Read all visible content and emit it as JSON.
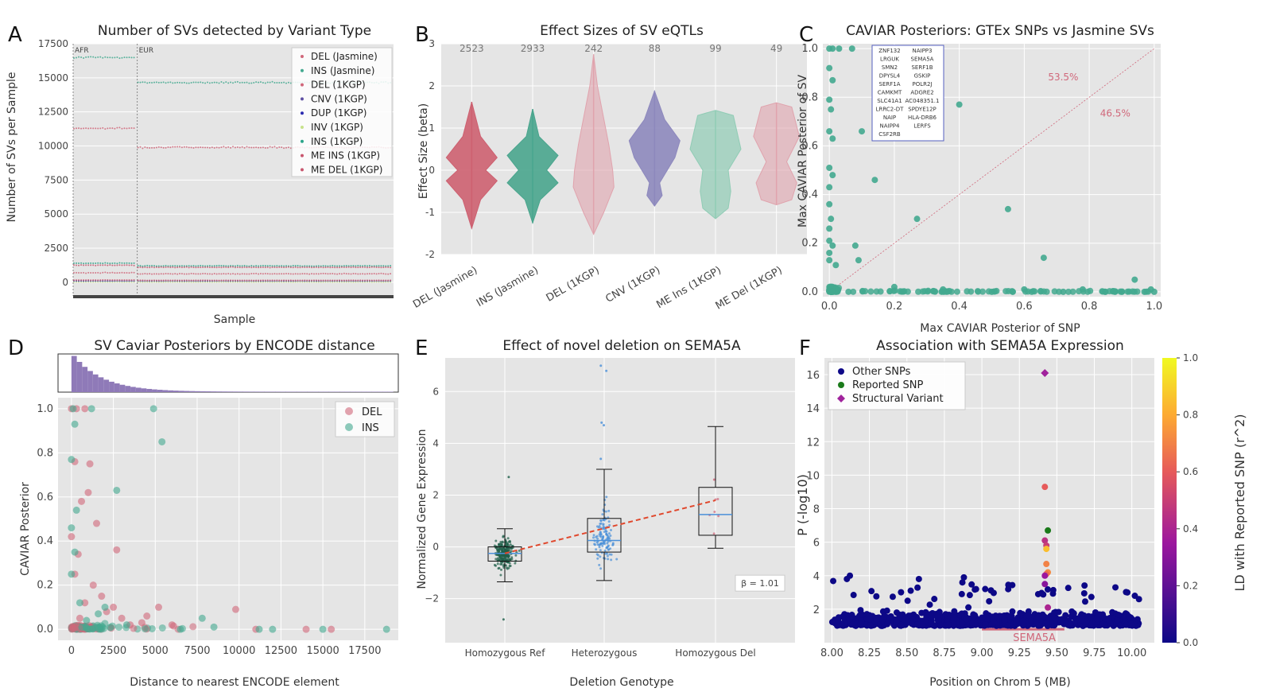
{
  "colors": {
    "panel_bg": "#e5e5e5",
    "grid": "#ffffff",
    "del": "#d0677a",
    "ins": "#43a98f",
    "cnv": "#5e4fa2",
    "dup": "#2b2bb0",
    "inv": "#c7e28b",
    "me_ins": "#2ca58a",
    "me_del": "#c8566e",
    "violin_del": "#cd6070",
    "violin_ins": "#49a58d",
    "violin_cnv": "#8d88bd",
    "violin_meins": "#90ccb5",
    "violin_medel": "#e0a3ad",
    "box_blue": "#4a90d9",
    "trend": "#e0482d",
    "hist": "#8f7ab8",
    "other_snp": "#0d0887",
    "reported_snp": "#1a7a1a",
    "sv": "#a0229c",
    "gene": "#d0677a"
  },
  "chart_data": [
    {
      "panel": "A",
      "type": "scatter",
      "title": "Number of SVs detected by Variant Type",
      "xlabel": "Sample",
      "ylabel": "Number of SVs per Sample",
      "ylim": [
        -1000,
        17500
      ],
      "yticks": [
        0,
        2500,
        5000,
        7500,
        10000,
        12500,
        15000,
        17500
      ],
      "population_labels": [
        "AFR",
        "EUR"
      ],
      "afr_fraction": 0.2,
      "legend_position": "top-right",
      "series": [
        {
          "name": "DEL (Jasmine)",
          "afr": 11300,
          "eur": 9900
        },
        {
          "name": "INS (Jasmine)",
          "afr": 16500,
          "eur": 14650
        },
        {
          "name": "DEL (1KGP)",
          "afr": 700,
          "eur": 620
        },
        {
          "name": "CNV (1KGP)",
          "afr": 60,
          "eur": 55
        },
        {
          "name": "DUP (1KGP)",
          "afr": 90,
          "eur": 80
        },
        {
          "name": "INV (1KGP)",
          "afr": 20,
          "eur": 18
        },
        {
          "name": "INS (1KGP)",
          "afr": 1400,
          "eur": 1200
        },
        {
          "name": "ME INS (1KGP)",
          "afr": 1250,
          "eur": 1100
        },
        {
          "name": "ME DEL (1KGP)",
          "afr": 160,
          "eur": 140
        }
      ]
    },
    {
      "panel": "B",
      "type": "violin",
      "title": "Effect Sizes of SV eQTLs",
      "ylabel": "Effect Size (beta)",
      "ylim": [
        -2,
        3
      ],
      "yticks": [
        -2,
        -1,
        0,
        1,
        2,
        3
      ],
      "categories": [
        "DEL (Jasmine)",
        "INS (Jasmine)",
        "DEL (1KGP)",
        "CNV (1KGP)",
        "ME Ins (1KGP)",
        "ME Del (1KGP)"
      ],
      "counts": [
        "2523",
        "2933",
        "242",
        "88",
        "99",
        "49"
      ],
      "ranges": [
        [
          -1.38,
          1.62
        ],
        [
          -1.25,
          1.45
        ],
        [
          -1.52,
          2.75
        ],
        [
          -0.85,
          1.88
        ],
        [
          -1.15,
          1.42
        ],
        [
          -0.82,
          1.6
        ]
      ]
    },
    {
      "panel": "C",
      "type": "scatter",
      "title": "CAVIAR Posteriors: GTEx SNPs vs Jasmine SVs",
      "xlabel": "Max CAVIAR Posterior of SNP",
      "ylabel": "Max CAVIAR Posterior of SV",
      "xlim": [
        -0.02,
        1.02
      ],
      "ylim": [
        -0.02,
        1.02
      ],
      "xticks": [
        0.0,
        0.2,
        0.4,
        0.6,
        0.8,
        1.0
      ],
      "yticks": [
        0.0,
        0.2,
        0.4,
        0.6,
        0.8,
        1.0
      ],
      "above_pct": "53.5%",
      "below_pct": "46.5%",
      "genes": [
        "ZNF132",
        "NAIPP3",
        "LRGUK",
        "SEMA5A",
        "SMN2",
        "SERF1B",
        "DPYSL4",
        "GSKIP",
        "SERF1A",
        "POLR2J",
        "CAMKMT",
        "ADGRE2",
        "SLC41A1",
        "AC048351.1",
        "LRRC2-DT",
        "SPDYE12P",
        "NAIP",
        "HLA-DRB6",
        "NAIPP4",
        "LERFS",
        "CSF2RB",
        ""
      ],
      "points": [
        [
          0.0,
          1.0
        ],
        [
          0.01,
          1.0
        ],
        [
          0.03,
          1.0
        ],
        [
          0.07,
          1.0
        ],
        [
          0.0,
          0.92
        ],
        [
          0.01,
          0.87
        ],
        [
          0.0,
          0.79
        ],
        [
          0.005,
          0.75
        ],
        [
          0.0,
          0.66
        ],
        [
          0.01,
          0.63
        ],
        [
          0.0,
          0.51
        ],
        [
          0.01,
          0.48
        ],
        [
          0.0,
          0.43
        ],
        [
          0.0,
          0.36
        ],
        [
          0.005,
          0.3
        ],
        [
          0.0,
          0.26
        ],
        [
          0.0,
          0.21
        ],
        [
          0.01,
          0.19
        ],
        [
          0.0,
          0.16
        ],
        [
          0.0,
          0.13
        ],
        [
          0.02,
          0.11
        ],
        [
          0.1,
          0.66
        ],
        [
          0.14,
          0.46
        ],
        [
          0.4,
          0.77
        ],
        [
          0.27,
          0.3
        ],
        [
          0.55,
          0.34
        ],
        [
          0.66,
          0.14
        ],
        [
          0.08,
          0.19
        ],
        [
          0.09,
          0.13
        ],
        [
          0.94,
          0.05
        ],
        [
          0.2,
          0.02
        ],
        [
          0.35,
          0.01
        ],
        [
          0.5,
          0.0
        ],
        [
          0.6,
          0.01
        ],
        [
          0.72,
          0.0
        ],
        [
          0.78,
          0.01
        ],
        [
          0.85,
          0.0
        ],
        [
          0.9,
          0.0
        ],
        [
          0.97,
          0.0
        ],
        [
          1.0,
          0.0
        ],
        [
          0.99,
          0.01
        ]
      ]
    },
    {
      "panel": "D",
      "type": "scatter",
      "title": "SV Caviar Posteriors by ENCODE distance",
      "xlabel": "Distance to nearest ENCODE element",
      "ylabel": "CAVIAR Posterior",
      "xlim": [
        -800,
        19500
      ],
      "ylim": [
        -0.05,
        1.05
      ],
      "xticks": [
        0,
        2500,
        5000,
        7500,
        10000,
        12500,
        15000,
        17500
      ],
      "yticks": [
        0.0,
        0.2,
        0.4,
        0.6,
        0.8,
        1.0
      ],
      "legend_position": "top-right",
      "series": [
        {
          "name": "DEL",
          "points": [
            [
              0,
              1.0
            ],
            [
              300,
              1.0
            ],
            [
              800,
              1.0
            ],
            [
              200,
              0.76
            ],
            [
              1000,
              0.62
            ],
            [
              600,
              0.58
            ],
            [
              1100,
              0.75
            ],
            [
              0,
              0.42
            ],
            [
              400,
              0.34
            ],
            [
              2700,
              0.36
            ],
            [
              1500,
              0.48
            ],
            [
              200,
              0.25
            ],
            [
              1300,
              0.2
            ],
            [
              800,
              0.12
            ],
            [
              2500,
              0.1
            ],
            [
              3000,
              0.05
            ],
            [
              4500,
              0.06
            ],
            [
              6000,
              0.02
            ],
            [
              9800,
              0.09
            ],
            [
              11000,
              0.0
            ],
            [
              14000,
              0.0
            ],
            [
              15500,
              0.0
            ],
            [
              3500,
              0.02
            ],
            [
              1800,
              0.15
            ],
            [
              500,
              0.05
            ],
            [
              2100,
              0.08
            ],
            [
              4200,
              0.03
            ],
            [
              5200,
              0.1
            ]
          ]
        },
        {
          "name": "INS",
          "points": [
            [
              100,
              1.0
            ],
            [
              1200,
              1.0
            ],
            [
              4900,
              1.0
            ],
            [
              0,
              0.77
            ],
            [
              200,
              0.93
            ],
            [
              5400,
              0.85
            ],
            [
              2700,
              0.63
            ],
            [
              0,
              0.46
            ],
            [
              300,
              0.54
            ],
            [
              200,
              0.35
            ],
            [
              0,
              0.25
            ],
            [
              500,
              0.12
            ],
            [
              2000,
              0.1
            ],
            [
              7800,
              0.05
            ],
            [
              12000,
              0.0
            ],
            [
              15000,
              0.0
            ],
            [
              18800,
              0.0
            ],
            [
              8500,
              0.01
            ],
            [
              3300,
              0.02
            ],
            [
              6500,
              0.0
            ],
            [
              900,
              0.04
            ],
            [
              1600,
              0.07
            ],
            [
              11200,
              0.0
            ]
          ]
        }
      ]
    },
    {
      "panel": "E",
      "type": "box",
      "title": "Effect of novel deletion on SEMA5A",
      "xlabel": "Deletion Genotype",
      "ylabel": "Normalized Gene Expression",
      "ylim": [
        -3.7,
        7.3
      ],
      "yticks": [
        -2,
        0,
        2,
        4,
        6
      ],
      "categories": [
        "Homozygous Ref",
        "Heterozygous",
        "Homozygous Del"
      ],
      "boxes": [
        {
          "whislo": -1.35,
          "q1": -0.55,
          "med": -0.25,
          "q3": 0.0,
          "whishi": 0.7
        },
        {
          "whislo": -1.3,
          "q1": -0.2,
          "med": 0.25,
          "q3": 1.1,
          "whishi": 3.0
        },
        {
          "whislo": -0.05,
          "q1": 0.45,
          "med": 1.25,
          "q3": 2.3,
          "whishi": 4.65
        }
      ],
      "trend": [
        [
          0,
          -0.25
        ],
        [
          2,
          1.8
        ]
      ],
      "beta_label": "β = 1.01"
    },
    {
      "panel": "F",
      "type": "scatter",
      "title": "Association with SEMA5A Expression",
      "xlabel": "Position on Chrom 5 (MB)",
      "ylabel": "P (-log10)",
      "colorbar_label": "LD with Reported SNP (r^2)",
      "xlim": [
        7.95,
        10.15
      ],
      "ylim": [
        0,
        17
      ],
      "xticks": [
        8.0,
        8.25,
        8.5,
        8.75,
        9.0,
        9.25,
        9.5,
        9.75,
        10.0
      ],
      "yticks": [
        2,
        4,
        6,
        8,
        10,
        12,
        14,
        16
      ],
      "colorbar_ticks": [
        0.0,
        0.2,
        0.4,
        0.6,
        0.8,
        1.0
      ],
      "legend_position": "top-left",
      "legend": [
        "Other SNPs",
        "Reported SNP",
        "Structural Variant"
      ],
      "gene": "SEMA5A",
      "gene_range": [
        9.0,
        9.55
      ],
      "sv": [
        9.42,
        16.1
      ],
      "reported_snp": [
        9.44,
        6.7
      ],
      "ld_points": [
        [
          9.42,
          9.3,
          0.6
        ],
        [
          9.42,
          6.1,
          0.45
        ],
        [
          9.43,
          5.8,
          0.5
        ],
        [
          9.43,
          5.6,
          0.85
        ],
        [
          9.43,
          4.7,
          0.7
        ],
        [
          9.44,
          4.2,
          0.72
        ],
        [
          9.43,
          4.1,
          0.65
        ],
        [
          9.42,
          4.0,
          0.35
        ],
        [
          9.42,
          3.5,
          0.3
        ],
        [
          9.44,
          2.1,
          0.4
        ]
      ]
    }
  ]
}
